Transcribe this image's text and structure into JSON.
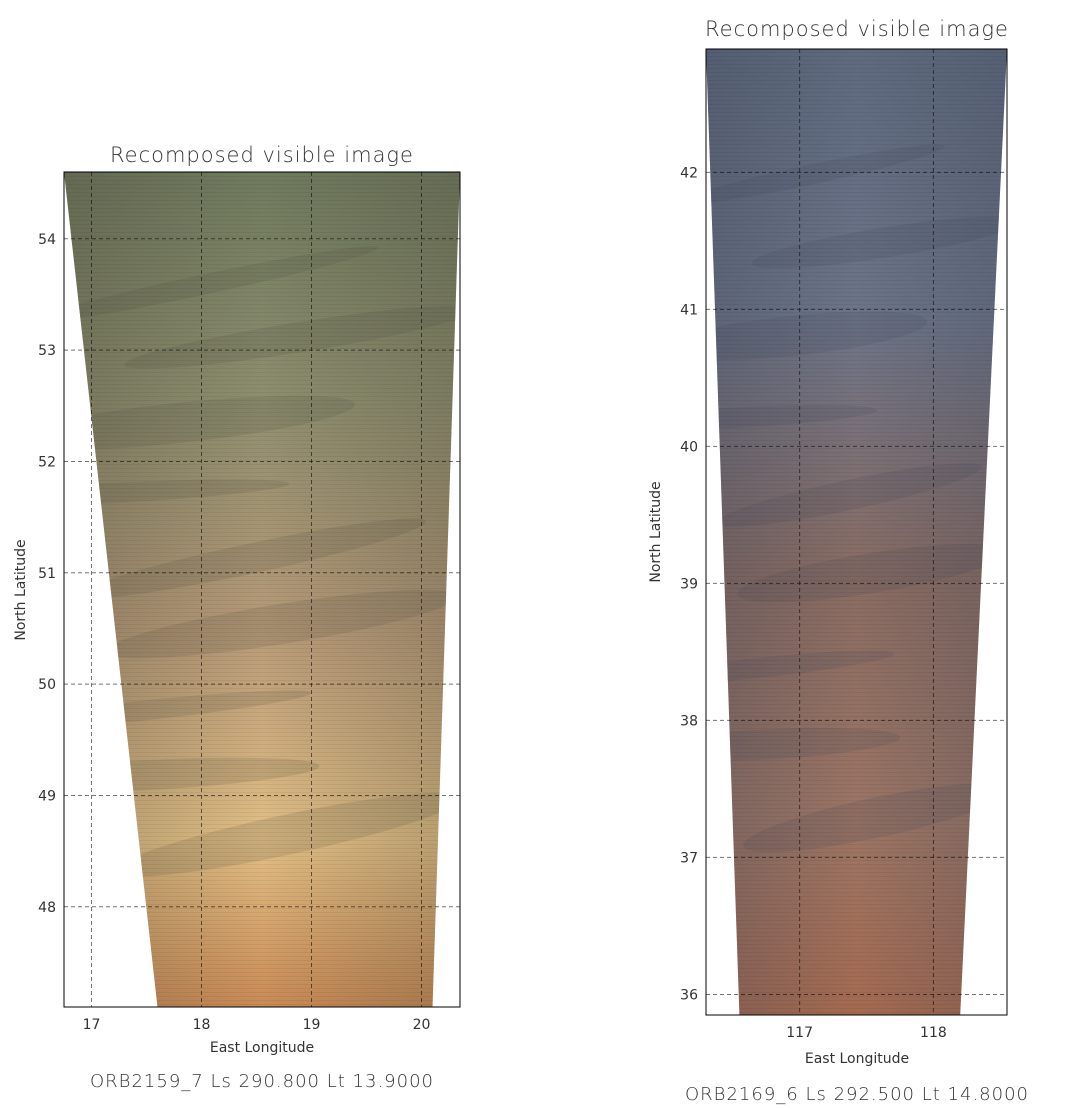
{
  "chart_data": [
    {
      "type": "heatmap",
      "title": "Recomposed visible image",
      "xlabel": "East Longitude",
      "ylabel": "North Latitude",
      "caption": "ORB2159_7 Ls 290.800 Lt 13.9000",
      "xlim": [
        16.75,
        20.35
      ],
      "ylim": [
        47.1,
        54.6
      ],
      "x_ticks": [
        17,
        18,
        19,
        20
      ],
      "y_ticks": [
        48,
        49,
        50,
        51,
        52,
        53,
        54
      ],
      "grid": true,
      "footprint": {
        "top_left_lon": 16.75,
        "top_right_lon": 20.35,
        "bottom_left_lon": 17.6,
        "bottom_right_lon": 20.1
      },
      "colors": {
        "top": "#6f7a5e",
        "upper": "#8f8f6f",
        "middle": "#b89a78",
        "lower": "#e2bf85",
        "bottom": "#c98a55",
        "shadow": "#4d4a3c"
      }
    },
    {
      "type": "heatmap",
      "title": "Recomposed visible image",
      "xlabel": "East Longitude",
      "ylabel": "North Latitude",
      "caption": "ORB2169_6 Ls 292.500 Lt 14.8000",
      "xlim": [
        116.3,
        118.55
      ],
      "ylim": [
        35.85,
        42.9
      ],
      "x_ticks": [
        117,
        118
      ],
      "y_ticks": [
        36,
        37,
        38,
        39,
        40,
        41,
        42
      ],
      "grid": true,
      "footprint": {
        "top_left_lon": 116.3,
        "top_right_lon": 118.55,
        "bottom_left_lon": 116.55,
        "bottom_right_lon": 118.2
      },
      "colors": {
        "top": "#5f6a7e",
        "upper": "#6c7488",
        "middle": "#8a6c62",
        "lower": "#9c7564",
        "bottom": "#a56a50",
        "shadow": "#3f4658"
      }
    }
  ]
}
